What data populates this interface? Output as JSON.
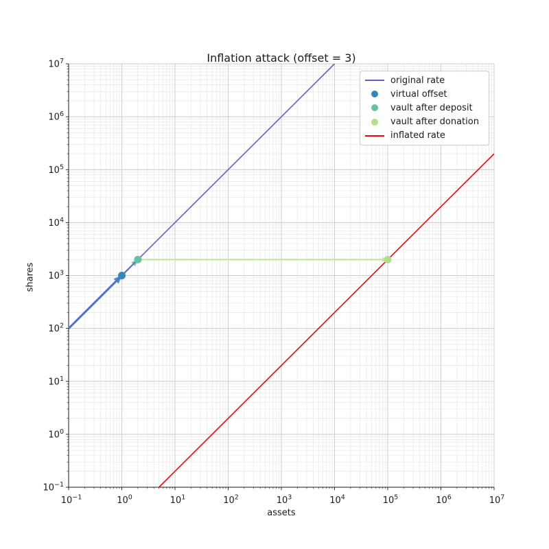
{
  "figure": {
    "background": "#ffffff",
    "text_color": "#1a1a1a"
  },
  "chart_data": {
    "type": "line",
    "title": "Inflation attack (offset = 3)",
    "xlabel": "assets",
    "ylabel": "shares",
    "xscale": "log",
    "yscale": "log",
    "xlim": [
      0.1,
      10000000
    ],
    "ylim": [
      0.1,
      10000000
    ],
    "grid": "both",
    "grid_major_color": "#c9c9c9",
    "grid_minor_color": "#e7e7e7",
    "spine_color": "#1a1a1a",
    "x_ticks": [
      0.1,
      1,
      10,
      100,
      1000,
      10000,
      100000,
      1000000,
      10000000
    ],
    "x_ticklabels": [
      "10^-1",
      "10^0",
      "10^1",
      "10^2",
      "10^3",
      "10^4",
      "10^5",
      "10^6",
      "10^7"
    ],
    "y_ticks": [
      0.1,
      1,
      10,
      100,
      1000,
      10000,
      100000,
      1000000,
      10000000
    ],
    "y_ticklabels": [
      "10^-1",
      "10^0",
      "10^1",
      "10^2",
      "10^3",
      "10^4",
      "10^5",
      "10^6",
      "10^7"
    ],
    "series": [
      {
        "name": "original rate",
        "type": "line",
        "color": "#6a5acd",
        "width": 1.6,
        "points": [
          [
            0.1,
            100
          ],
          [
            10000,
            10000000
          ]
        ]
      },
      {
        "name": "inflated rate",
        "type": "line",
        "color": "#ff0000",
        "width": 1.6,
        "points": [
          [
            5,
            0.1
          ],
          [
            10000000,
            200000
          ]
        ]
      },
      {
        "name": "virtual offset",
        "type": "scatter",
        "color": "#3288bd",
        "marker_size": 5.5,
        "points": [
          [
            1,
            1000
          ]
        ]
      },
      {
        "name": "vault after deposit",
        "type": "scatter",
        "color": "#66c2a5",
        "marker_size": 5.5,
        "points": [
          [
            2,
            2000
          ]
        ]
      },
      {
        "name": "vault after donation",
        "type": "scatter",
        "color": "#b2df8a",
        "marker_size": 5.5,
        "points": [
          [
            100000,
            2000
          ]
        ]
      }
    ],
    "arrows": [
      {
        "name": "virtual-offset-arrow",
        "from": [
          0.1,
          100
        ],
        "to": [
          1,
          1000
        ],
        "color": "#4a8fc7",
        "width": 3.2
      },
      {
        "name": "deposit-arrow",
        "from": [
          1,
          1000
        ],
        "to": [
          2,
          2000
        ],
        "color": "#79c9a7",
        "width": 2.6
      },
      {
        "name": "donation-arrow",
        "from": [
          2,
          2000
        ],
        "to": [
          100000,
          2000
        ],
        "color": "#c3e79e",
        "width": 2.2
      }
    ],
    "legend": {
      "position": "upper right",
      "entries": [
        {
          "label": "original rate",
          "marker": "line",
          "color": "#6a5acd"
        },
        {
          "label": "virtual offset",
          "marker": "dot",
          "color": "#3288bd"
        },
        {
          "label": "vault after deposit",
          "marker": "dot",
          "color": "#66c2a5"
        },
        {
          "label": "vault after donation",
          "marker": "dot",
          "color": "#b2df8a"
        },
        {
          "label": "inflated rate",
          "marker": "line",
          "color": "#ff0000"
        }
      ]
    }
  }
}
